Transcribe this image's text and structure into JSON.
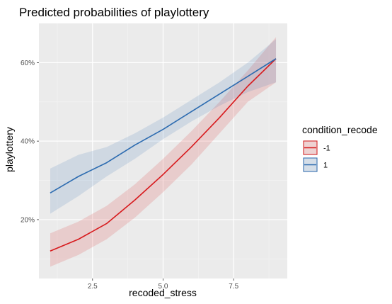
{
  "chart_data": {
    "type": "line",
    "title": "Predicted probabilities of playlottery",
    "xlabel": "recoded_stress",
    "ylabel": "playlottery",
    "xlim": [
      0.6,
      9.4
    ],
    "ylim": [
      0.05,
      0.7
    ],
    "x_ticks": [
      2.5,
      5.0,
      7.5
    ],
    "x_tick_labels": [
      "2.5",
      "5.0",
      "7.5"
    ],
    "y_ticks": [
      0.2,
      0.4,
      0.6
    ],
    "y_tick_labels": [
      "20%",
      "40%",
      "60%"
    ],
    "grid": true,
    "legend": {
      "title": "condition_recode",
      "position": "right"
    },
    "series": [
      {
        "name": "-1",
        "color": "#d7191c",
        "x": [
          1,
          2,
          3,
          4,
          5,
          6,
          7,
          8,
          9
        ],
        "y": [
          0.12,
          0.15,
          0.19,
          0.25,
          0.315,
          0.385,
          0.46,
          0.54,
          0.61
        ],
        "lower": [
          0.08,
          0.11,
          0.15,
          0.205,
          0.27,
          0.34,
          0.42,
          0.5,
          0.55
        ],
        "upper": [
          0.165,
          0.195,
          0.235,
          0.29,
          0.355,
          0.425,
          0.5,
          0.58,
          0.665
        ]
      },
      {
        "name": "1",
        "color": "#2c6bb0",
        "x": [
          1,
          2,
          3,
          4,
          5,
          6,
          7,
          8,
          9
        ],
        "y": [
          0.268,
          0.31,
          0.345,
          0.39,
          0.43,
          0.475,
          0.52,
          0.565,
          0.61
        ],
        "lower": [
          0.215,
          0.26,
          0.31,
          0.355,
          0.405,
          0.45,
          0.49,
          0.525,
          0.55
        ],
        "upper": [
          0.33,
          0.365,
          0.385,
          0.42,
          0.46,
          0.505,
          0.55,
          0.6,
          0.66
        ]
      }
    ]
  }
}
